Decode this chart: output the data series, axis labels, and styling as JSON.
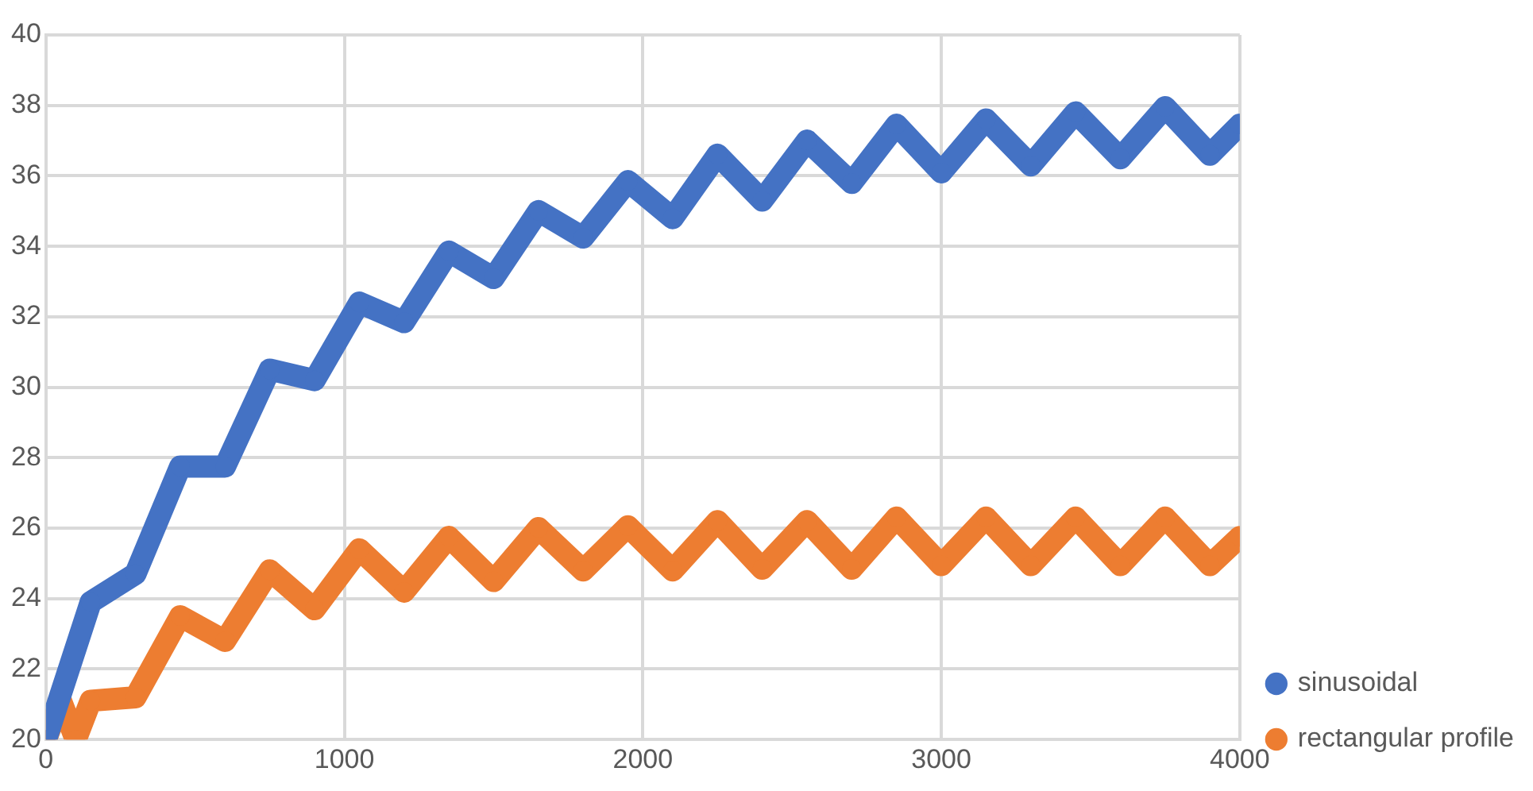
{
  "chart_data": {
    "type": "line",
    "xlim": [
      0,
      4000
    ],
    "xticks": [
      0,
      1000,
      2000,
      3000,
      4000
    ],
    "ylim": [
      20,
      40
    ],
    "yticks": [
      20,
      22,
      24,
      26,
      28,
      30,
      32,
      34,
      36,
      38,
      40
    ],
    "grid": true,
    "legend": "right",
    "marker": "circle",
    "line_style": "solid",
    "series": [
      {
        "name": "sinusoidal",
        "color": "#4472c4",
        "x": [
          0,
          150,
          300,
          450,
          600,
          750,
          900,
          1050,
          1200,
          1350,
          1500,
          1650,
          1800,
          1950,
          2100,
          2250,
          2400,
          2550,
          2700,
          2850,
          3000,
          3150,
          3300,
          3450,
          3600,
          3750,
          3900,
          4000
        ],
        "values": [
          20,
          23.9,
          24.7,
          27.75,
          27.75,
          30.5,
          30.2,
          32.4,
          31.85,
          33.85,
          33.1,
          35,
          34.25,
          35.85,
          34.8,
          36.6,
          35.3,
          37,
          35.8,
          37.45,
          36.1,
          37.6,
          36.3,
          37.8,
          36.5,
          37.95,
          36.6,
          37.45
        ]
      },
      {
        "name": "rectangular profile",
        "color": "#ed7d31",
        "x": [
          0,
          50,
          100,
          150,
          300,
          450,
          600,
          750,
          900,
          1050,
          1200,
          1350,
          1500,
          1650,
          1800,
          1950,
          2100,
          2250,
          2400,
          2550,
          2700,
          2850,
          3000,
          3150,
          3300,
          3450,
          3600,
          3750,
          3900,
          4000
        ],
        "values": [
          20,
          21.1,
          20,
          21.1,
          21.2,
          23.5,
          22.8,
          24.8,
          23.7,
          25.4,
          24.2,
          25.75,
          24.5,
          26,
          24.8,
          26.05,
          24.8,
          26.2,
          24.85,
          26.2,
          24.85,
          26.3,
          24.95,
          26.3,
          24.95,
          26.3,
          24.95,
          26.3,
          24.95,
          25.75
        ]
      }
    ]
  }
}
